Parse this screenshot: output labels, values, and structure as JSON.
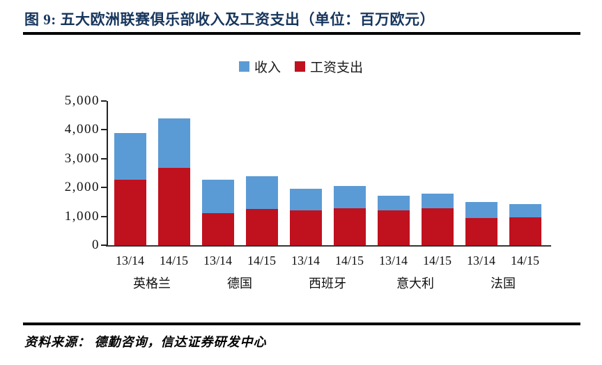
{
  "header": {
    "title": "图 9:  五大欧洲联赛俱乐部收入及工资支出（单位：百万欧元）"
  },
  "legend": [
    {
      "name": "revenue",
      "label": "收入",
      "color": "#5B9BD5"
    },
    {
      "name": "wages",
      "label": "工资支出",
      "color": "#C0111F"
    }
  ],
  "chart_data": {
    "type": "bar",
    "stacked": true,
    "note": "Total bar height = revenue (收入); red lower segment = wages (工资支出); blue upper segment = revenue minus wages.",
    "unit": "百万欧元",
    "title": "五大欧洲联赛俱乐部收入及工资支出",
    "groups": [
      "英格兰",
      "德国",
      "西班牙",
      "意大利",
      "法国"
    ],
    "seasons": [
      "13/14",
      "14/15"
    ],
    "categories": [
      "13/14",
      "14/15",
      "13/14",
      "14/15",
      "13/14",
      "14/15",
      "13/14",
      "14/15",
      "13/14",
      "14/15"
    ],
    "series": [
      {
        "name": "收入",
        "color": "#5B9BD5",
        "values": [
          3900,
          4400,
          2280,
          2400,
          1950,
          2050,
          1710,
          1790,
          1490,
          1430
        ]
      },
      {
        "name": "工资支出",
        "color": "#C0111F",
        "values": [
          2270,
          2680,
          1100,
          1250,
          1200,
          1280,
          1210,
          1290,
          930,
          960
        ]
      }
    ],
    "ylim": [
      0,
      5000
    ],
    "ytick_labels": [
      "0",
      "1,000",
      "2,000",
      "3,000",
      "4,000",
      "5,000"
    ],
    "grid": false,
    "legend_position": "top-center"
  },
  "footer": {
    "source": "资料来源：  德勤咨询，信达证券研发中心"
  }
}
